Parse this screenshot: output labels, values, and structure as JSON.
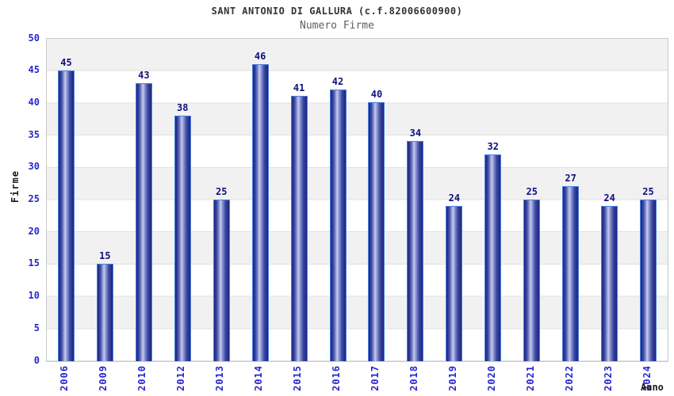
{
  "chart_data": {
    "type": "bar",
    "title": "SANT ANTONIO DI GALLURA (c.f.82006600900)",
    "subtitle": "Numero Firme",
    "xlabel": "Anno",
    "ylabel": "Firme",
    "categories": [
      "2006",
      "2009",
      "2010",
      "2012",
      "2013",
      "2014",
      "2015",
      "2016",
      "2017",
      "2018",
      "2019",
      "2020",
      "2021",
      "2022",
      "2023",
      "2024"
    ],
    "values": [
      45,
      15,
      43,
      38,
      25,
      46,
      41,
      42,
      40,
      34,
      24,
      32,
      25,
      27,
      24,
      25
    ],
    "ylim": [
      0,
      50
    ],
    "ytick_step": 5,
    "yticks": [
      0,
      5,
      10,
      15,
      20,
      25,
      30,
      35,
      40,
      45,
      50
    ],
    "grid": "horizontal-bands-alternating",
    "legend": "none",
    "colors": {
      "bar_dark": "#1b2383",
      "bar_highlight": "#c6cbee",
      "bar_border": "#4b82e0",
      "tick_label": "#2626cd",
      "value_label": "#10107e",
      "axis_label": "#1a1a1a",
      "title": "#333333",
      "subtitle": "#5f5f5f",
      "band_gray": "#f1f1f1",
      "band_white": "#ffffff",
      "plot_border": "#c9c9c9"
    }
  }
}
